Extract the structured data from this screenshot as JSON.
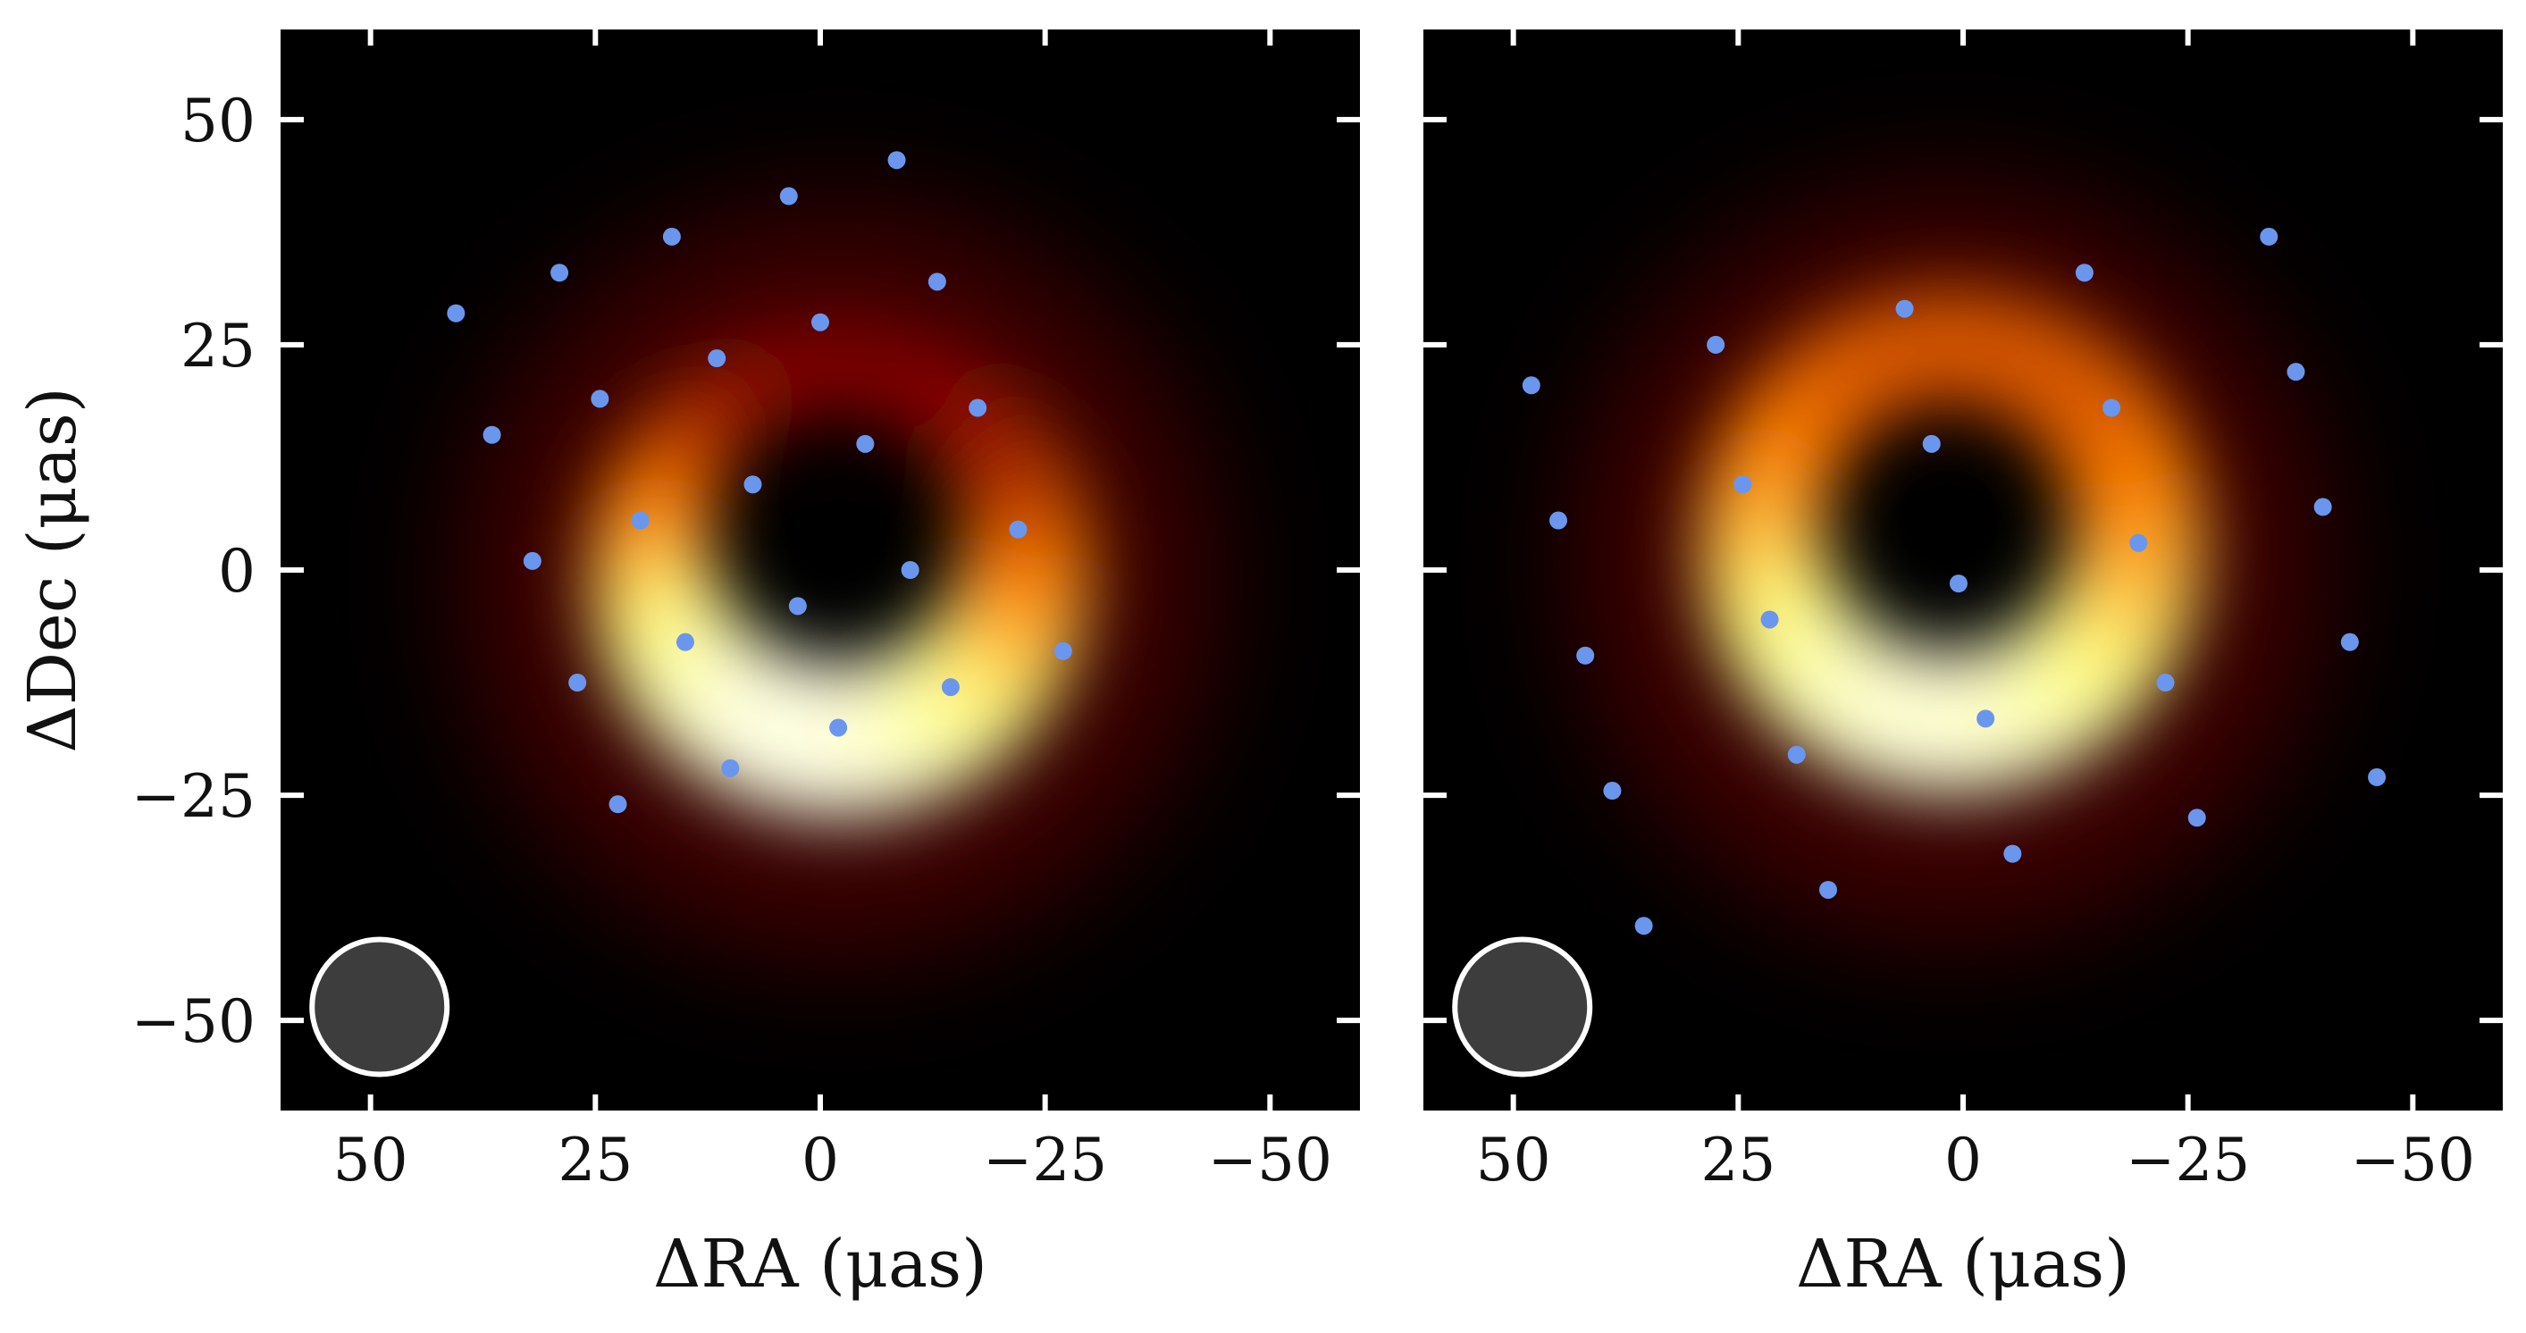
{
  "figure": {
    "colors": {
      "background": "#ffffff",
      "image_bg": "#000000",
      "points": "#6a96ee",
      "beam_fill": "#3d3d3d",
      "beam_stroke": "#ffffff",
      "tick": "#ffffff"
    },
    "colormap": "afmhot"
  },
  "chart_data": [
    {
      "type": "heatmap",
      "name": "left-panel",
      "xlabel": "ΔRA (μas)",
      "ylabel": "ΔDec (μas)",
      "xlim": [
        60,
        -60
      ],
      "ylim": [
        -60,
        60
      ],
      "xticks": [
        50,
        25,
        0,
        -25,
        -50
      ],
      "yticks": [
        50,
        25,
        0,
        -25,
        -50
      ],
      "xtick_labels": [
        "50",
        "25",
        "0",
        "−25",
        "−50"
      ],
      "ytick_labels": [
        "50",
        "25",
        "0",
        "−25",
        "−50"
      ],
      "ring": {
        "center": [
          -2,
          2
        ],
        "radius": 21,
        "brightest_pa_deg": 185,
        "shape": "crescent"
      },
      "beam": {
        "center": [
          49,
          -48.5
        ],
        "radius": 7.5
      },
      "points": [
        [
          40.5,
          28.5
        ],
        [
          29,
          33
        ],
        [
          16.5,
          37
        ],
        [
          3.5,
          41.5
        ],
        [
          -8.5,
          45.5
        ],
        [
          -13,
          32
        ],
        [
          0,
          27.5
        ],
        [
          11.5,
          23.5
        ],
        [
          24.5,
          19
        ],
        [
          36.5,
          15
        ],
        [
          -17.5,
          18
        ],
        [
          -5,
          14
        ],
        [
          7.5,
          9.5
        ],
        [
          20,
          5.5
        ],
        [
          32,
          1
        ],
        [
          -22,
          4.5
        ],
        [
          -10,
          0
        ],
        [
          2.5,
          -4
        ],
        [
          15,
          -8
        ],
        [
          27,
          -12.5
        ],
        [
          -27,
          -9
        ],
        [
          -14.5,
          -13
        ],
        [
          -2,
          -17.5
        ],
        [
          10,
          -22
        ],
        [
          22.5,
          -26
        ]
      ]
    },
    {
      "type": "heatmap",
      "name": "right-panel",
      "xlabel": "ΔRA (μas)",
      "ylabel": "",
      "xlim": [
        60,
        -60
      ],
      "ylim": [
        -60,
        60
      ],
      "xticks": [
        50,
        25,
        0,
        -25,
        -50
      ],
      "yticks": [
        50,
        25,
        0,
        -25,
        -50
      ],
      "xtick_labels": [
        "50",
        "25",
        "0",
        "−25",
        "−50"
      ],
      "ytick_labels": [],
      "ring": {
        "center": [
          1.5,
          4
        ],
        "radius": 21,
        "brightest_pa_deg": 190,
        "shape": "ring"
      },
      "beam": {
        "center": [
          49,
          -48.5
        ],
        "radius": 7.5
      },
      "points": [
        [
          48,
          20.5
        ],
        [
          45,
          5.5
        ],
        [
          42,
          -9.5
        ],
        [
          39,
          -24.5
        ],
        [
          35.5,
          -39.5
        ],
        [
          27.5,
          25
        ],
        [
          24.5,
          9.5
        ],
        [
          21.5,
          -5.5
        ],
        [
          18.5,
          -20.5
        ],
        [
          15,
          -35.5
        ],
        [
          6.5,
          29
        ],
        [
          3.5,
          14
        ],
        [
          0.5,
          -1.5
        ],
        [
          -2.5,
          -16.5
        ],
        [
          -5.5,
          -31.5
        ],
        [
          -13.5,
          33
        ],
        [
          -16.5,
          18
        ],
        [
          -19.5,
          3
        ],
        [
          -22.5,
          -12.5
        ],
        [
          -26,
          -27.5
        ],
        [
          -34,
          37
        ],
        [
          -37,
          22
        ],
        [
          -40,
          7
        ],
        [
          -43,
          -8
        ],
        [
          -46,
          -23
        ]
      ]
    }
  ]
}
